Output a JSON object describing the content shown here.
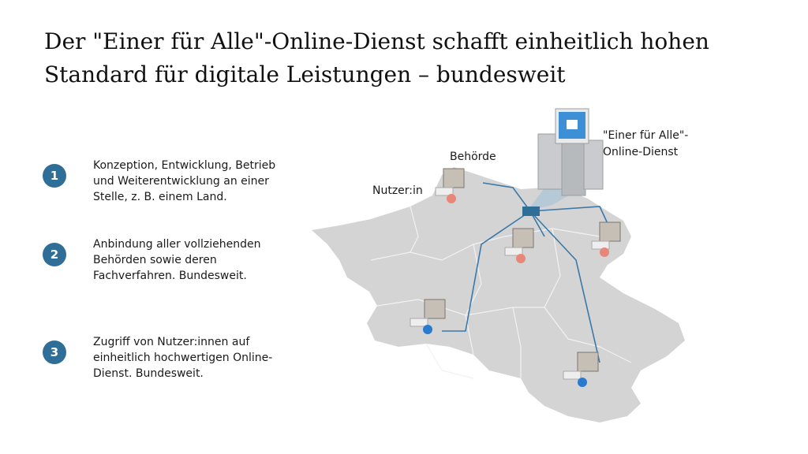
{
  "title": "Der \"Einer für Alle\"-Online-Dienst schafft einheitlich hohen Standard für digitale Leistungen – bundesweit",
  "points": [
    {
      "number": "1",
      "text": "Konzeption, Entwicklung, Betrieb und Weiterentwicklung an einer Stelle, z. B. einem Land."
    },
    {
      "number": "2",
      "text": "Anbindung aller vollziehenden Behörden sowie deren Fachverfahren. Bundesweit."
    },
    {
      "number": "3",
      "text": "Zugriff von Nutzer:innen auf einheitlich hochwertigen Online-Dienst. Bundesweit."
    }
  ],
  "diagram": {
    "label_authority": "Behörde",
    "label_user": "Nutzer:in",
    "label_service_line1": "\"Einer für Alle\"-",
    "label_service_line2": "Online-Dienst",
    "colors": {
      "accent": "#2f6e96",
      "map": "#d4d4d4",
      "line": "#3a78a8",
      "user_red": "#e8867a",
      "user_blue": "#2a7bd0"
    }
  }
}
